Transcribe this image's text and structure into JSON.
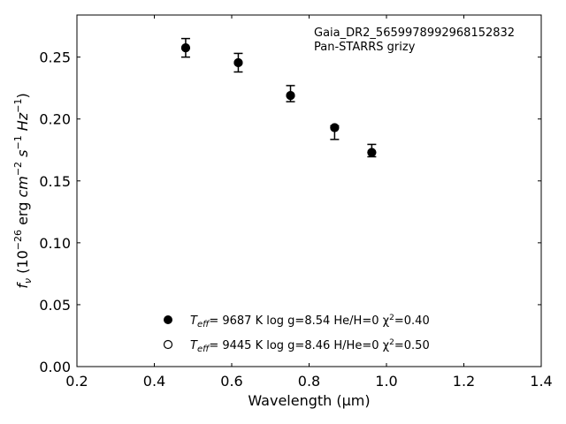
{
  "chart_data": {
    "type": "scatter",
    "xlabel": "Wavelength (μm)",
    "ylabel": "f_ν (10^-26 erg cm^-2 s^-1 Hz^-1)",
    "xlim": [
      0.2,
      1.4
    ],
    "ylim": [
      0.0,
      0.284
    ],
    "xticks": [
      "0.2",
      "0.4",
      "0.6",
      "0.8",
      "1.0",
      "1.2",
      "1.4"
    ],
    "yticks": [
      "0.00",
      "0.05",
      "0.10",
      "0.15",
      "0.20",
      "0.25"
    ],
    "tick_direction": "in",
    "grid": false,
    "annotation": [
      "Gaia_DR2_5659978992968152832",
      "Pan-STARRS grizy"
    ],
    "observed": {
      "x": [
        0.481,
        0.617,
        0.752,
        0.866,
        0.962
      ],
      "y": [
        0.2575,
        0.2455,
        0.2205,
        0.189,
        0.1745
      ],
      "yerr": [
        0.0075,
        0.0075,
        0.0065,
        0.0055,
        0.005
      ]
    },
    "series": [
      {
        "marker": "filled-circle",
        "color": "#000000",
        "x": [
          0.481,
          0.617,
          0.752,
          0.866,
          0.962
        ],
        "y": [
          0.2575,
          0.2455,
          0.219,
          0.193,
          0.173
        ]
      },
      {
        "marker": "open-circle",
        "color": "#000000",
        "x": [
          0.481,
          0.617,
          0.752,
          0.866,
          0.962
        ],
        "y": [
          0.2575,
          0.2455,
          0.219,
          0.193,
          0.173
        ]
      }
    ],
    "legend": {
      "placement": "lower-center",
      "entries": [
        {
          "marker": "filled-circle",
          "teff_label": "T",
          "teff_sub": "eff",
          "text": "=  9687 K  log g=8.54  He/H=0  χ",
          "sup": "2",
          "tail": "=0.40"
        },
        {
          "marker": "open-circle",
          "teff_label": "T",
          "teff_sub": "eff",
          "text": "=  9445 K  log g=8.46  H/He=0  χ",
          "sup": "2",
          "tail": "=0.50"
        }
      ]
    }
  }
}
